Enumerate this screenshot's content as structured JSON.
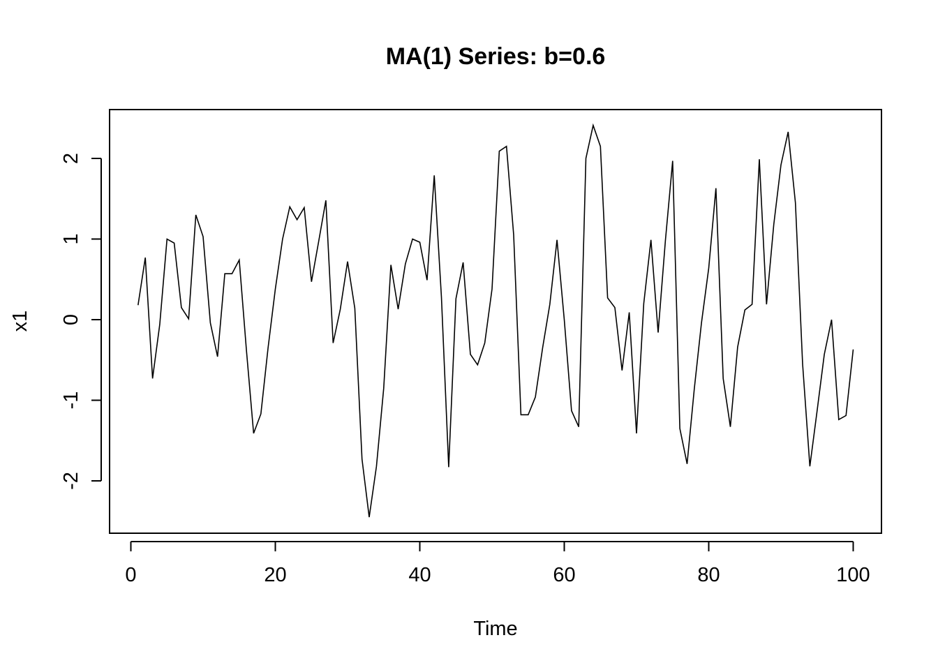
{
  "chart_data": {
    "type": "line",
    "title": "MA(1) Series: b=0.6",
    "xlabel": "Time",
    "ylabel": "x1",
    "xlim": [
      1,
      100
    ],
    "ylim": [
      -2.6,
      2.5
    ],
    "x_ticks": [
      0,
      20,
      40,
      60,
      80,
      100
    ],
    "y_ticks": [
      -2,
      -1,
      0,
      1,
      2
    ],
    "grid": false,
    "line_color": "#000000",
    "series": [
      {
        "x": [
          1,
          2,
          3,
          4,
          5,
          6,
          7,
          8,
          9,
          10,
          11,
          12,
          13,
          14,
          15,
          16,
          17,
          18,
          19,
          20,
          21,
          22,
          23,
          24,
          25,
          26,
          27,
          28,
          29,
          30,
          31,
          32,
          33,
          34,
          35,
          36,
          37,
          38,
          39,
          40,
          41,
          42,
          43,
          44,
          45,
          46,
          47,
          48,
          49,
          50,
          51,
          52,
          53,
          54,
          55,
          56,
          57,
          58,
          59,
          60,
          61,
          62,
          63,
          64,
          65,
          66,
          67,
          68,
          69,
          70,
          71,
          72,
          73,
          74,
          75,
          76,
          77,
          78,
          79,
          80,
          81,
          82,
          83,
          84,
          85,
          86,
          87,
          88,
          89,
          90,
          91,
          92,
          93,
          94,
          95,
          96,
          97,
          98,
          99,
          100
        ],
        "values": [
          0.18,
          0.77,
          -0.73,
          -0.06,
          1.0,
          0.95,
          0.15,
          0.01,
          1.3,
          1.03,
          -0.04,
          -0.46,
          0.57,
          0.57,
          0.74,
          -0.38,
          -1.41,
          -1.17,
          -0.35,
          0.38,
          1.0,
          1.4,
          1.24,
          1.39,
          0.47,
          0.97,
          1.48,
          -0.29,
          0.13,
          0.72,
          0.14,
          -1.73,
          -2.45,
          -1.82,
          -0.85,
          0.68,
          0.13,
          0.69,
          1.0,
          0.96,
          0.49,
          1.79,
          0.28,
          -1.83,
          0.26,
          0.71,
          -0.43,
          -0.56,
          -0.29,
          0.38,
          2.09,
          2.15,
          1.05,
          -1.18,
          -1.18,
          -0.96,
          -0.35,
          0.19,
          0.99,
          0.0,
          -1.13,
          -1.33,
          2.0,
          2.41,
          2.15,
          0.27,
          0.15,
          -0.63,
          0.09,
          -1.41,
          0.2,
          0.99,
          -0.16,
          0.98,
          1.97,
          -1.35,
          -1.79,
          -0.86,
          -0.04,
          0.64,
          1.63,
          -0.73,
          -1.33,
          -0.34,
          0.12,
          0.19,
          1.99,
          0.19,
          1.18,
          1.92,
          2.33,
          1.45,
          -0.55,
          -1.82,
          -1.13,
          -0.43,
          0.0,
          -1.24,
          -1.19,
          -0.37
        ]
      }
    ]
  }
}
